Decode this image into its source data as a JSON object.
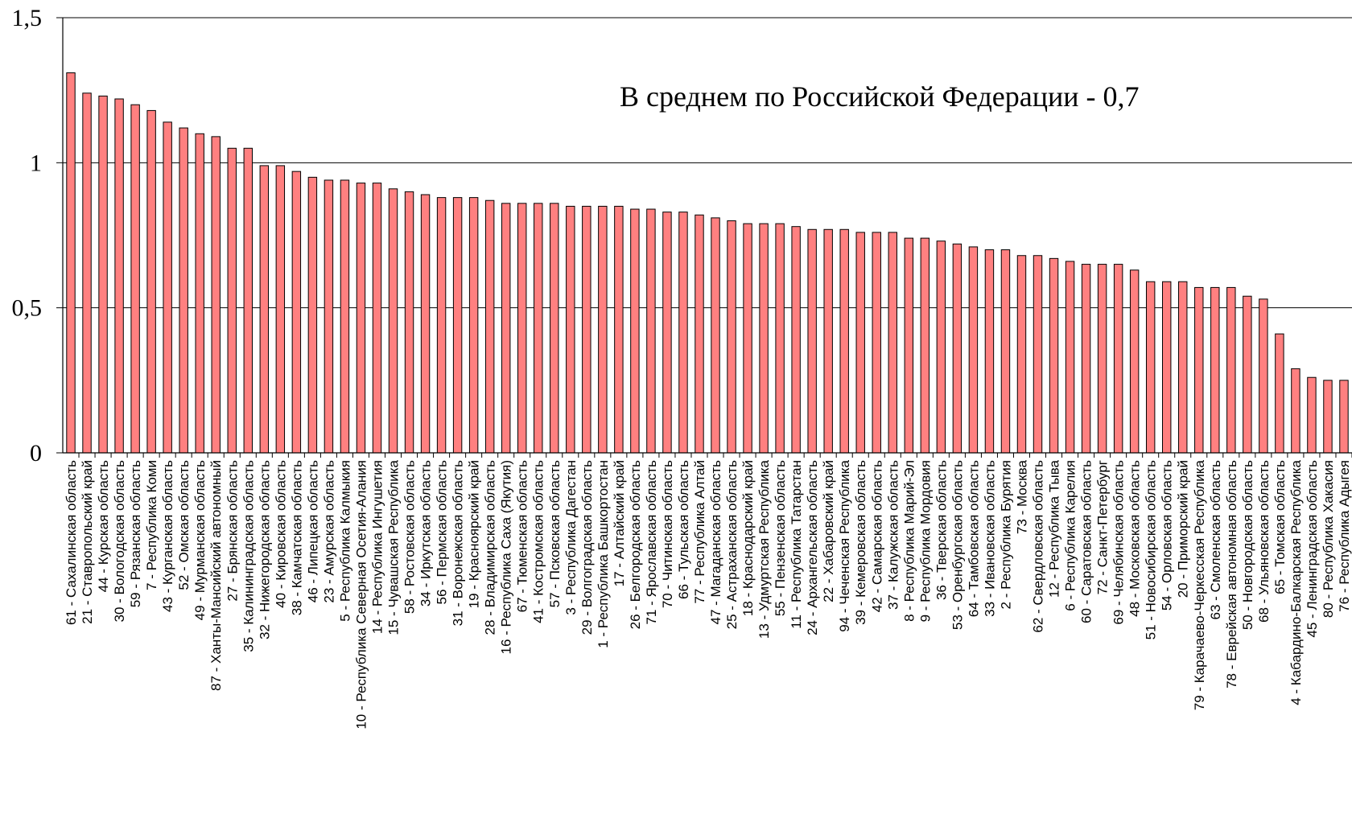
{
  "chart_data": {
    "type": "bar",
    "title": "",
    "xlabel": "",
    "ylabel": "",
    "ylim": [
      0,
      1.5
    ],
    "yticks": [
      "0",
      "0,5",
      "1",
      "1,5"
    ],
    "grid": true,
    "bar_color": "#FF8080",
    "bar_stroke": "#000000",
    "annotation": "В среднем по Российской Федерации - 0,7",
    "categories": [
      "61 - Сахалинская область",
      "21 - Ставропольский край",
      "44 - Курская область",
      "30 - Вологодская область",
      "59 - Рязанская область",
      "7 - Республика Коми",
      "43 - Курганская область",
      "52 - Омская область",
      "49 - Мурманская область",
      "87 - Ханты-Мансийский автономный",
      "27 - Брянская область",
      "35 - Калининградская область",
      "32 - Нижегородская область",
      "40 - Кировская область",
      "38 - Камчатская область",
      "46 - Липецкая область",
      "23 - Амурская область",
      "5 - Республика Калмыкия",
      "10 - Республика Северная Осетия-Алания",
      "14 - Республика Ингушетия",
      "15 - Чувашская Республика",
      "58 - Ростовская область",
      "34 - Иркутская область",
      "56 - Пермская область",
      "31 - Воронежская область",
      "19 - Красноярский край",
      "28 - Владимирская область",
      "16 - Республика Саха (Якутия)",
      "67 - Тюменская область",
      "41 - Костромская область",
      "57 - Псковская область",
      "3 - Республика Дагестан",
      "29 - Волгоградская область",
      "1 - Республика Башкортостан",
      "17 - Алтайский край",
      "26 - Белгородская область",
      "71 - Ярославская область",
      "70 - Читинская область",
      "66 - Тульская область",
      "77 - Республика Алтай",
      "47 - Магаданская область",
      "25 - Астраханская область",
      "18 - Краснодарский край",
      "13 - Удмуртская Республика",
      "55 - Пензенская область",
      "11 - Республика Татарстан",
      "24 - Архангельская область",
      "22 - Хабаровский край",
      "94 - Чеченская Республика",
      "39 - Кемеровская область",
      "42 - Самарская область",
      "37 - Калужская область",
      "8 - Республика Марий-Эл",
      "9 - Республика Мордовия",
      "36 - Тверская область",
      "53 - Оренбургская область",
      "64 - Тамбовская область",
      "33 - Ивановская область",
      "2 - Республика Бурятия",
      "73 - Москва",
      "62 - Свердловская область",
      "12 - Республика Тыва",
      "6 - Республика Карелия",
      "60 - Саратовская область",
      "72 - Санкт-Петербург",
      "69 - Челябинская область",
      "48 - Московская область",
      "51 - Новосибирская область",
      "54 - Орловская область",
      "20 - Приморский край",
      "79 - Карачаево-Черкесская Республика",
      "63 - Смоленская область",
      "78 - Еврейская автономная область",
      "50 - Новгородская область",
      "68 - Ульяновская область",
      "65 - Томская область",
      "4 - Кабардино-Балкарская Республика",
      "45 - Ленинградская область",
      "80 - Республика Хакасия",
      "76 - Республика Адыгея"
    ],
    "values": [
      1.31,
      1.24,
      1.23,
      1.22,
      1.2,
      1.18,
      1.14,
      1.12,
      1.1,
      1.09,
      1.05,
      1.05,
      0.99,
      0.99,
      0.97,
      0.95,
      0.94,
      0.94,
      0.93,
      0.93,
      0.91,
      0.9,
      0.89,
      0.88,
      0.88,
      0.88,
      0.87,
      0.86,
      0.86,
      0.86,
      0.86,
      0.85,
      0.85,
      0.85,
      0.85,
      0.84,
      0.84,
      0.83,
      0.83,
      0.82,
      0.81,
      0.8,
      0.79,
      0.79,
      0.79,
      0.78,
      0.77,
      0.77,
      0.77,
      0.76,
      0.76,
      0.76,
      0.74,
      0.74,
      0.73,
      0.72,
      0.71,
      0.7,
      0.7,
      0.68,
      0.68,
      0.67,
      0.66,
      0.65,
      0.65,
      0.65,
      0.63,
      0.59,
      0.59,
      0.59,
      0.57,
      0.57,
      0.57,
      0.54,
      0.53,
      0.41,
      0.29,
      0.26,
      0.25,
      0.25
    ]
  }
}
